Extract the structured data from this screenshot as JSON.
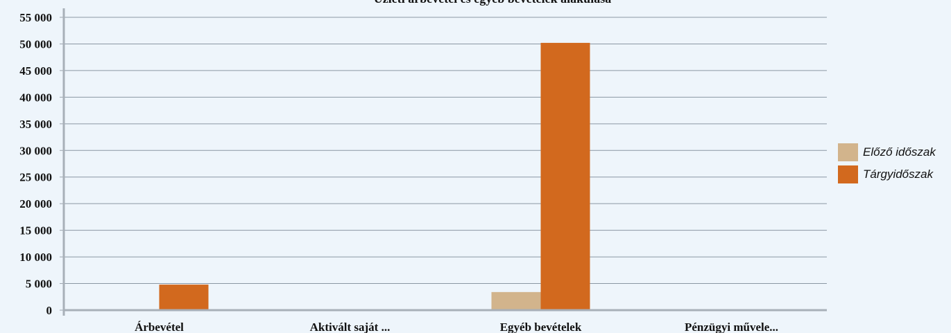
{
  "chart_data": {
    "type": "bar",
    "title": "Üzleti árbevétel és egyéb bevételek alakulása",
    "xlabel": "",
    "ylabel": "",
    "ylim": [
      0,
      55000
    ],
    "yticks": [
      0,
      5000,
      10000,
      15000,
      20000,
      25000,
      30000,
      35000,
      40000,
      45000,
      50000,
      55000
    ],
    "ytick_labels": [
      "0",
      "5 000",
      "10 000",
      "15 000",
      "20 000",
      "25 000",
      "30 000",
      "35 000",
      "40 000",
      "45 000",
      "50 000",
      "55 000"
    ],
    "categories": [
      "Árbevétel",
      "Aktivált saját ...",
      "Egyéb bevételek",
      "Pénzügyi művele..."
    ],
    "series": [
      {
        "name": "Előző időszak",
        "color": "#d2b48c",
        "values": [
          0,
          0,
          3400,
          0
        ]
      },
      {
        "name": "Tárgyidőszak",
        "color": "#d2691e",
        "values": [
          4800,
          0,
          50200,
          0
        ]
      }
    ],
    "grid": true,
    "legend": "right"
  }
}
